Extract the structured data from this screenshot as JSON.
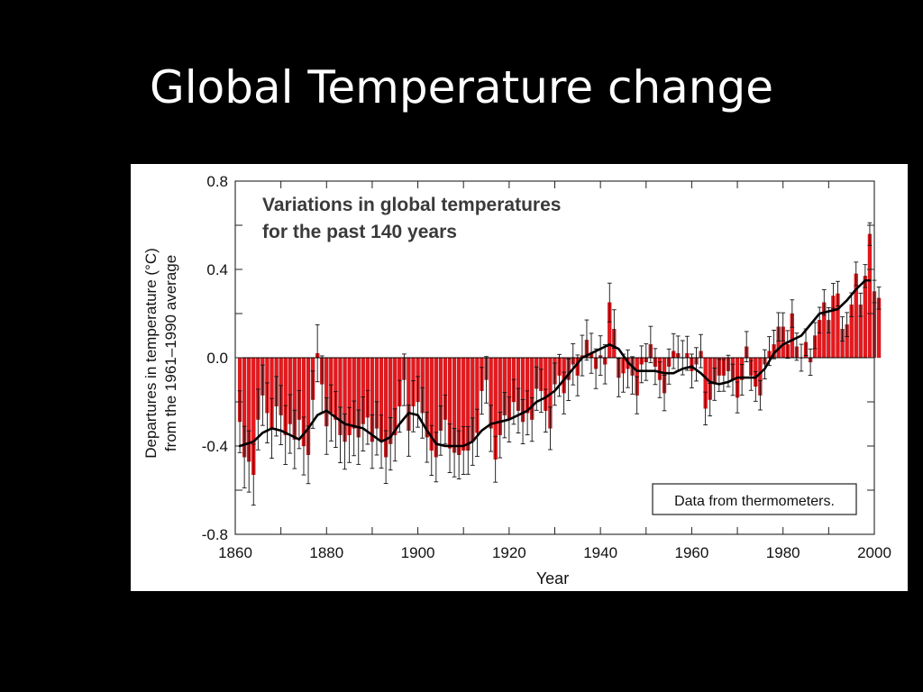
{
  "slide": {
    "title": "Global Temperature change"
  },
  "colors": {
    "background": "#000000",
    "title_text": "#ffffff",
    "panel": "#ffffff",
    "bar_fill": "#e8171c",
    "bar_edge": "#8a0d10",
    "smooth_line": "#000000",
    "error_bar": "#111111"
  },
  "chart_data": {
    "type": "bar",
    "title": "Variations in global temperatures",
    "subtitle": "for the past 140 years",
    "xlabel": "Year",
    "ylabel_line1": "Departures in temperature (°C)",
    "ylabel_line2": "from the 1961–1990 average",
    "annotation": "Data from thermometers.",
    "xlim": [
      1860,
      2000
    ],
    "ylim": [
      -0.8,
      0.8
    ],
    "x_ticks": [
      1860,
      1880,
      1900,
      1920,
      1940,
      1960,
      1980,
      2000
    ],
    "y_ticks": [
      "-0.8",
      "-0.4",
      "0.0",
      "0.4",
      "0.8"
    ],
    "grid": false,
    "legend": "none",
    "series": [
      {
        "kind": "annual",
        "x_start": 1861,
        "values": [
          -0.29,
          -0.45,
          -0.47,
          -0.53,
          -0.28,
          -0.17,
          -0.25,
          -0.32,
          -0.22,
          -0.26,
          -0.35,
          -0.3,
          -0.37,
          -0.28,
          -0.4,
          -0.44,
          -0.19,
          0.02,
          -0.12,
          -0.31,
          -0.25,
          -0.28,
          -0.35,
          -0.38,
          -0.35,
          -0.32,
          -0.36,
          -0.3,
          -0.27,
          -0.38,
          -0.32,
          -0.38,
          -0.45,
          -0.39,
          -0.35,
          -0.22,
          -0.1,
          -0.33,
          -0.22,
          -0.2,
          -0.25,
          -0.36,
          -0.42,
          -0.45,
          -0.33,
          -0.28,
          -0.41,
          -0.43,
          -0.44,
          -0.42,
          -0.42,
          -0.38,
          -0.34,
          -0.15,
          -0.1,
          -0.32,
          -0.46,
          -0.35,
          -0.26,
          -0.28,
          -0.2,
          -0.24,
          -0.29,
          -0.25,
          -0.28,
          -0.14,
          -0.15,
          -0.24,
          -0.32,
          -0.12,
          -0.08,
          -0.16,
          -0.1,
          -0.03,
          -0.08,
          0.01,
          0.08,
          0.02,
          -0.05,
          0.01,
          -0.03,
          0.25,
          0.13,
          -0.09,
          -0.07,
          -0.05,
          -0.08,
          -0.17,
          -0.03,
          -0.02,
          0.06,
          -0.04,
          -0.1,
          -0.16,
          -0.04,
          0.03,
          0.02,
          0.0,
          0.02,
          -0.06,
          -0.03,
          0.03,
          -0.23,
          -0.19,
          -0.12,
          -0.08,
          -0.08,
          -0.06,
          -0.1,
          -0.18,
          -0.1,
          0.05,
          -0.08,
          -0.13,
          -0.17,
          -0.03,
          0.03,
          0.06,
          0.14,
          0.14,
          0.06,
          0.2,
          0.05,
          0.0,
          0.07,
          -0.02,
          0.1,
          0.17,
          0.25,
          0.17,
          0.28,
          0.29,
          0.13,
          0.15,
          0.24,
          0.38,
          0.24,
          0.37,
          0.56,
          0.3,
          0.27
        ]
      },
      {
        "kind": "smoothed",
        "x": [
          1861,
          1864,
          1866,
          1868,
          1870,
          1872,
          1874,
          1876,
          1878,
          1880,
          1882,
          1884,
          1886,
          1888,
          1890,
          1892,
          1894,
          1896,
          1898,
          1900,
          1902,
          1904,
          1906,
          1908,
          1910,
          1912,
          1914,
          1916,
          1918,
          1920,
          1922,
          1924,
          1926,
          1928,
          1930,
          1932,
          1934,
          1936,
          1938,
          1940,
          1942,
          1944,
          1946,
          1948,
          1950,
          1952,
          1954,
          1956,
          1958,
          1960,
          1962,
          1964,
          1966,
          1968,
          1970,
          1972,
          1974,
          1976,
          1978,
          1980,
          1982,
          1984,
          1986,
          1988,
          1990,
          1992,
          1994,
          1996,
          1998,
          1999
        ],
        "values": [
          -0.4,
          -0.38,
          -0.34,
          -0.32,
          -0.33,
          -0.35,
          -0.37,
          -0.32,
          -0.26,
          -0.24,
          -0.27,
          -0.3,
          -0.31,
          -0.32,
          -0.35,
          -0.38,
          -0.36,
          -0.3,
          -0.25,
          -0.26,
          -0.33,
          -0.39,
          -0.4,
          -0.4,
          -0.4,
          -0.38,
          -0.33,
          -0.3,
          -0.29,
          -0.28,
          -0.26,
          -0.24,
          -0.2,
          -0.18,
          -0.15,
          -0.1,
          -0.05,
          0.0,
          0.02,
          0.04,
          0.06,
          0.04,
          -0.02,
          -0.06,
          -0.06,
          -0.06,
          -0.07,
          -0.07,
          -0.05,
          -0.04,
          -0.07,
          -0.11,
          -0.12,
          -0.11,
          -0.09,
          -0.09,
          -0.09,
          -0.05,
          0.02,
          0.06,
          0.08,
          0.1,
          0.15,
          0.2,
          0.21,
          0.22,
          0.26,
          0.31,
          0.35,
          0.35
        ]
      }
    ]
  }
}
